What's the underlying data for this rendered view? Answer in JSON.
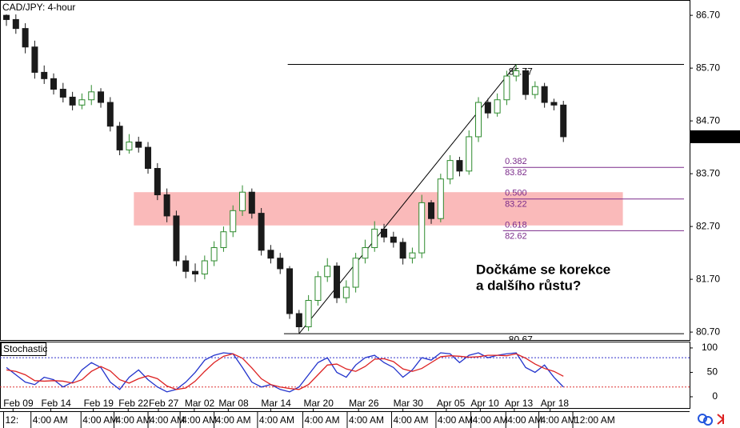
{
  "chart_data": [
    {
      "type": "candlestick",
      "title": "CAD/JPY: 4-hour",
      "up_color": "#2e8b2e",
      "down_color": "#1a1a1a",
      "open": [
        86.7,
        86.62,
        86.45,
        86.1,
        85.62,
        85.5,
        85.3,
        85.15,
        85.0,
        85.1,
        85.25,
        85.05,
        84.6,
        84.15,
        84.3,
        84.2,
        83.8,
        83.3,
        82.9,
        82.05,
        81.85,
        81.8,
        82.05,
        82.3,
        82.6,
        83.0,
        83.35,
        82.95,
        82.25,
        82.1,
        81.9,
        81.05,
        80.8,
        81.3,
        81.75,
        81.95,
        81.35,
        81.55,
        82.1,
        82.3,
        82.65,
        82.5,
        82.4,
        82.1,
        82.2,
        83.15,
        82.85,
        83.6,
        83.95,
        83.75,
        84.4,
        85.05,
        84.85,
        85.1,
        85.55,
        85.65,
        85.2,
        85.35,
        85.05,
        85.0
      ],
      "high": [
        86.82,
        86.75,
        86.55,
        86.22,
        85.75,
        85.6,
        85.42,
        85.25,
        85.22,
        85.38,
        85.32,
        85.15,
        84.68,
        84.45,
        84.4,
        84.3,
        83.9,
        83.42,
        83.0,
        82.15,
        82.0,
        82.15,
        82.42,
        82.7,
        83.1,
        83.48,
        83.42,
        83.05,
        82.35,
        82.2,
        81.95,
        81.12,
        81.4,
        81.85,
        82.1,
        82.02,
        81.68,
        82.2,
        82.45,
        82.8,
        82.75,
        82.6,
        82.48,
        82.3,
        83.3,
        83.2,
        83.7,
        84.05,
        84.02,
        84.52,
        85.15,
        85.12,
        85.22,
        85.65,
        85.77,
        85.7,
        85.45,
        85.42,
        85.12,
        85.08
      ],
      "low": [
        86.5,
        86.35,
        85.98,
        85.5,
        85.4,
        85.2,
        85.05,
        84.9,
        84.92,
        85.0,
        84.95,
        84.5,
        84.05,
        84.08,
        84.1,
        83.7,
        83.2,
        82.78,
        81.95,
        81.72,
        81.65,
        81.7,
        81.95,
        82.22,
        82.5,
        82.9,
        82.85,
        82.15,
        82.0,
        81.8,
        80.95,
        80.67,
        80.72,
        81.2,
        81.65,
        81.25,
        81.25,
        81.45,
        82.0,
        82.22,
        82.4,
        82.3,
        81.98,
        82.0,
        82.1,
        82.75,
        82.78,
        83.5,
        83.65,
        83.68,
        84.3,
        84.75,
        84.78,
        85.0,
        85.45,
        85.1,
        85.12,
        84.95,
        84.9,
        84.3
      ],
      "close": [
        86.62,
        86.45,
        86.1,
        85.62,
        85.5,
        85.3,
        85.15,
        85.0,
        85.1,
        85.25,
        85.05,
        84.6,
        84.15,
        84.3,
        84.2,
        83.8,
        83.3,
        82.9,
        82.05,
        81.85,
        81.8,
        82.05,
        82.3,
        82.6,
        83.0,
        83.35,
        82.95,
        82.25,
        82.1,
        81.9,
        81.05,
        80.8,
        81.3,
        81.75,
        81.95,
        81.35,
        81.55,
        82.1,
        82.3,
        82.65,
        82.5,
        82.4,
        82.1,
        82.2,
        83.15,
        82.85,
        83.6,
        83.95,
        83.75,
        84.4,
        85.05,
        84.85,
        85.1,
        85.55,
        85.65,
        85.2,
        85.35,
        85.05,
        85.0,
        84.4
      ],
      "xlim": [
        -0.68,
        72.37
      ],
      "xticks": [
        {
          "value": 0.7,
          "label": "Feb 09"
        },
        {
          "value": 4.7,
          "label": "Feb 14"
        },
        {
          "value": 9.2,
          "label": "Feb 19"
        },
        {
          "value": 12.9,
          "label": "Feb 22"
        },
        {
          "value": 16.1,
          "label": "Feb 27"
        },
        {
          "value": 19.9,
          "label": "Mar 02"
        },
        {
          "value": 23.5,
          "label": "Mar 08"
        },
        {
          "value": 28,
          "label": "Mar 14"
        },
        {
          "value": 32.5,
          "label": "Mar 20"
        },
        {
          "value": 37.3,
          "label": "Mar 26"
        },
        {
          "value": 42,
          "label": "Mar 30"
        },
        {
          "value": 46.6,
          "label": "Apr 05"
        },
        {
          "value": 50.2,
          "label": "Apr 10"
        },
        {
          "value": 53.8,
          "label": "Apr 13"
        },
        {
          "value": 57.6,
          "label": "Apr 18"
        }
      ],
      "x2ticks": [
        {
          "value": -0.3,
          "label": "12:"
        },
        {
          "value": 2.6,
          "label": "4:00 AM"
        },
        {
          "value": 7.9,
          "label": "4:00 AM"
        },
        {
          "value": 11.4,
          "label": "4:00 AM"
        },
        {
          "value": 15,
          "label": "4:00 AM"
        },
        {
          "value": 18.4,
          "label": "4:00 AM"
        },
        {
          "value": 22,
          "label": "4:00 AM"
        },
        {
          "value": 26.6,
          "label": "4:00 AM"
        },
        {
          "value": 31.4,
          "label": "4:00 AM"
        },
        {
          "value": 36.1,
          "label": "4:00 AM"
        },
        {
          "value": 40.8,
          "label": "4:00 AM"
        },
        {
          "value": 45.5,
          "label": "4:00 AM"
        },
        {
          "value": 49.2,
          "label": "4:00 AM"
        },
        {
          "value": 52.9,
          "label": "4:00 AM"
        },
        {
          "value": 56.4,
          "label": "4:00 AM"
        },
        {
          "value": 60,
          "label": "12:00 AM"
        }
      ],
      "ylim": [
        80.55,
        86.99
      ],
      "yticks": [
        {
          "value": 80.7,
          "label": "80.70"
        },
        {
          "value": 81.7,
          "label": "81.70"
        },
        {
          "value": 82.7,
          "label": "82.70"
        },
        {
          "value": 83.7,
          "label": "83.70"
        },
        {
          "value": 84.7,
          "label": "84.70"
        },
        {
          "value": 85.7,
          "label": "85.70"
        },
        {
          "value": 86.7,
          "label": "86.70"
        }
      ],
      "current_price": {
        "value": 84.4,
        "label": "84.40"
      },
      "levels": [
        85.77,
        80.67
      ],
      "zone": [
        82.72,
        83.35
      ],
      "fibonacci": [
        {
          "ratio": 0.382,
          "price": 83.82
        },
        {
          "ratio": {
            "value": 0.5,
            "label": "0.500"
          },
          "price": 83.22
        },
        {
          "ratio": 0.618,
          "price": 82.62
        }
      ],
      "annotations": [
        "Dočkáme se korekce",
        "a dalšího růstu?"
      ]
    },
    {
      "type": "line",
      "title": "Stochastic",
      "ylim": [
        -23,
        113
      ],
      "yticks": [
        0,
        50,
        100
      ],
      "levels": [
        {
          "value": 80,
          "color": "#3333cc"
        },
        {
          "value": 20,
          "color": "#dd3333"
        }
      ],
      "series": [
        {
          "color": "#2233cc",
          "values": [
            60,
            45,
            30,
            25,
            40,
            35,
            20,
            30,
            55,
            70,
            60,
            30,
            15,
            40,
            55,
            35,
            20,
            10,
            15,
            30,
            50,
            75,
            85,
            90,
            88,
            60,
            30,
            20,
            25,
            15,
            10,
            20,
            45,
            70,
            80,
            50,
            40,
            65,
            80,
            85,
            70,
            60,
            40,
            55,
            80,
            75,
            90,
            88,
            70,
            85,
            90,
            80,
            85,
            88,
            90,
            60,
            50,
            65,
            40,
            20
          ]
        },
        {
          "color": "#dd2222",
          "values": [
            55,
            52,
            45,
            33,
            32,
            33,
            32,
            28,
            35,
            52,
            62,
            53,
            35,
            28,
            37,
            43,
            37,
            22,
            15,
            18,
            32,
            52,
            70,
            83,
            88,
            79,
            59,
            37,
            25,
            20,
            17,
            15,
            25,
            45,
            65,
            67,
            57,
            52,
            62,
            77,
            78,
            72,
            57,
            52,
            58,
            70,
            82,
            84,
            83,
            81,
            82,
            85,
            85,
            84,
            88,
            79,
            67,
            58,
            52,
            42
          ]
        }
      ]
    }
  ]
}
